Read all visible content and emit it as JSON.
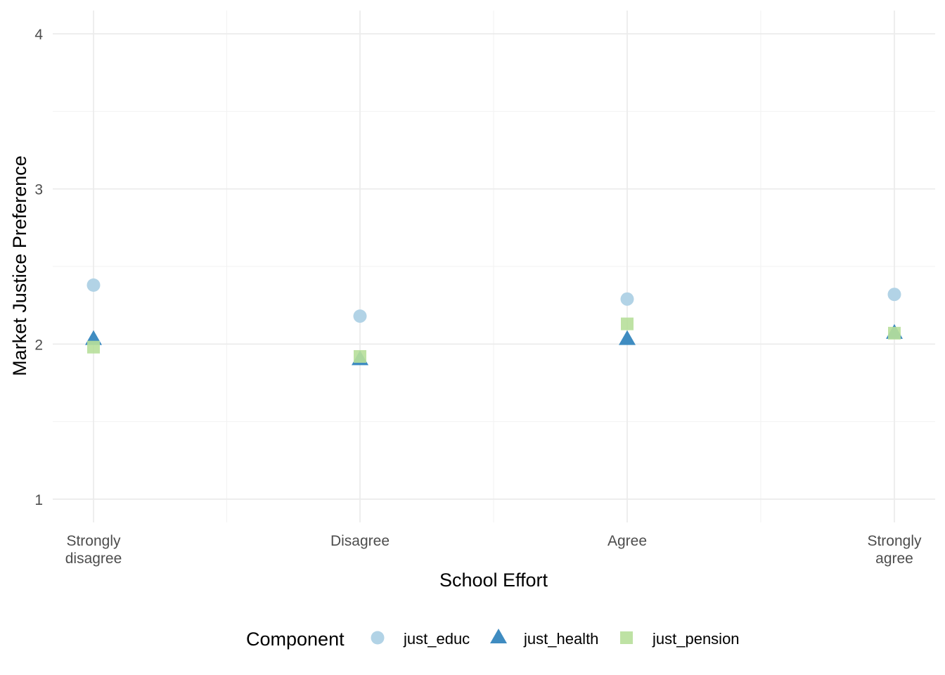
{
  "chart_data": {
    "type": "scatter",
    "title": "",
    "xlabel": "School Effort",
    "ylabel": "Market Justice Preference",
    "categories": [
      "Strongly\ndisagree",
      "Disagree",
      "Agree",
      "Strongly\nagree"
    ],
    "ylim": [
      0.85,
      4.15
    ],
    "yticks": [
      1,
      2,
      3,
      4
    ],
    "grid": true,
    "legend": {
      "title": "Component",
      "placement": "bottom"
    },
    "series": [
      {
        "name": "just_educ",
        "shape": "circle",
        "color": "#b2d3e6",
        "values": [
          2.38,
          2.18,
          2.29,
          2.32
        ]
      },
      {
        "name": "just_health",
        "shape": "triangle",
        "color": "#3f8cc1",
        "values": [
          2.03,
          1.9,
          2.03,
          2.07
        ]
      },
      {
        "name": "just_pension",
        "shape": "square",
        "color": "#b7df9a",
        "values": [
          1.98,
          1.92,
          2.13,
          2.07
        ]
      }
    ]
  }
}
